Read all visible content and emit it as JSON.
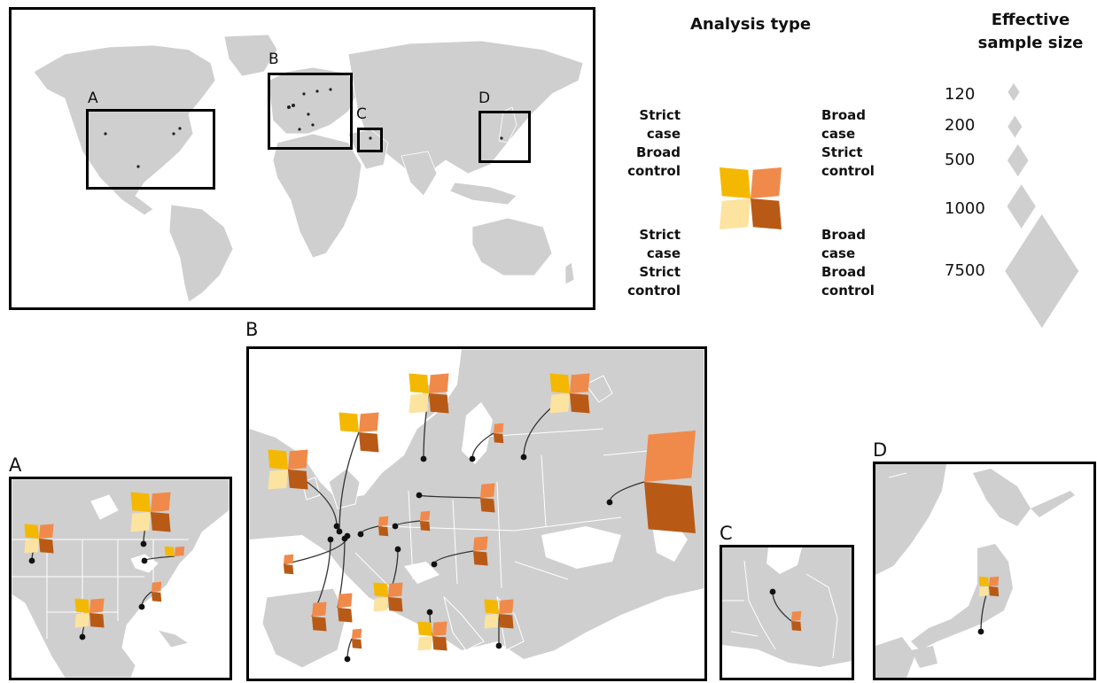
{
  "colors": {
    "strict_case_broad_control": "#f5b800",
    "broad_case_strict_control": "#f08a4b",
    "strict_case_strict_control": "#fde3a0",
    "broad_case_broad_control": "#b85a16",
    "land": "#cfcfcf",
    "water": "#ffffff",
    "marker": "#111111",
    "size_diamond": "#cfcfcf"
  },
  "world_map": {
    "inset_labels": [
      "A",
      "B",
      "C",
      "D"
    ]
  },
  "legend": {
    "analysis_type_title": "Analysis type",
    "quadrants": {
      "top_left": [
        "Strict",
        "case",
        "Broad",
        "control"
      ],
      "top_right": [
        "Broad",
        "case",
        "Strict",
        "control"
      ],
      "bottom_left": [
        "Strict",
        "case",
        "Strict",
        "control"
      ],
      "bottom_right": [
        "Broad",
        "case",
        "Broad",
        "control"
      ]
    },
    "sample_size_title": [
      "Effective",
      "sample size"
    ],
    "sample_sizes": [
      120,
      200,
      500,
      1000,
      7500
    ]
  },
  "panels": {
    "A": {
      "label": "A",
      "studies": [
        {
          "sample_size": 500,
          "types": [
            "scbc",
            "bcsc",
            "scsc",
            "bcbc"
          ]
        },
        {
          "sample_size": 1000,
          "types": [
            "scbc",
            "bcsc",
            "scsc",
            "bcbc"
          ]
        },
        {
          "sample_size": 200,
          "types": [
            "scbc",
            "bcsc"
          ]
        },
        {
          "sample_size": 200,
          "types": [
            "bcsc",
            "bcbc"
          ]
        },
        {
          "sample_size": 500,
          "types": [
            "scbc",
            "bcsc",
            "scsc",
            "bcbc"
          ]
        }
      ]
    },
    "B": {
      "label": "B",
      "studies": [
        {
          "sample_size": 1000,
          "types": [
            "scbc",
            "bcsc",
            "scsc",
            "bcbc"
          ]
        },
        {
          "sample_size": 1000,
          "types": [
            "scbc",
            "bcsc",
            "bcbc"
          ]
        },
        {
          "sample_size": 1000,
          "types": [
            "scbc",
            "bcsc",
            "scsc",
            "bcbc"
          ]
        },
        {
          "sample_size": 1000,
          "types": [
            "scbc",
            "bcsc",
            "scsc",
            "bcbc"
          ]
        },
        {
          "sample_size": 200,
          "types": [
            "bcsc",
            "bcbc"
          ]
        },
        {
          "sample_size": 7500,
          "types": [
            "bcsc",
            "bcbc"
          ]
        },
        {
          "sample_size": 500,
          "types": [
            "bcsc",
            "bcbc"
          ]
        },
        {
          "sample_size": 200,
          "types": [
            "bcsc",
            "bcbc"
          ]
        },
        {
          "sample_size": 200,
          "types": [
            "bcsc",
            "bcbc"
          ]
        },
        {
          "sample_size": 500,
          "types": [
            "bcsc",
            "bcbc"
          ]
        },
        {
          "sample_size": 200,
          "types": [
            "bcsc",
            "bcbc"
          ]
        },
        {
          "sample_size": 500,
          "types": [
            "bcsc",
            "bcbc"
          ]
        },
        {
          "sample_size": 500,
          "types": [
            "bcsc",
            "bcbc"
          ]
        },
        {
          "sample_size": 500,
          "types": [
            "scbc",
            "bcsc",
            "scsc",
            "bcbc"
          ]
        },
        {
          "sample_size": 200,
          "types": [
            "bcsc",
            "bcbc"
          ]
        },
        {
          "sample_size": 500,
          "types": [
            "scbc",
            "bcsc",
            "scsc",
            "bcbc"
          ]
        },
        {
          "sample_size": 500,
          "types": [
            "scbc",
            "bcsc",
            "scsc",
            "bcbc"
          ]
        }
      ]
    },
    "C": {
      "label": "C",
      "studies": [
        {
          "sample_size": 200,
          "types": [
            "bcsc",
            "bcbc"
          ]
        }
      ]
    },
    "D": {
      "label": "D",
      "studies": [
        {
          "sample_size": 200,
          "types": [
            "scbc",
            "bcsc",
            "scsc",
            "bcbc"
          ]
        }
      ]
    }
  }
}
